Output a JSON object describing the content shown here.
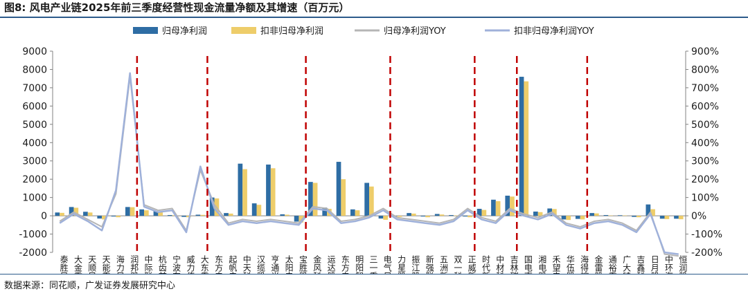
{
  "figure": {
    "title": "图8:  风电产业链2025年前三季度经营性现金流量净额及其增速（百万元）",
    "source": "数据来源：同花顺，广发证券发展研究中心"
  },
  "colors": {
    "net_profit": "#2e6da4",
    "deducted_net_profit": "#eecd6a",
    "net_profit_yoy": "#b5b5b5",
    "deducted_net_profit_yoy": "#9fb1da",
    "separator": "#c00000"
  },
  "chart_data": {
    "type": "bar",
    "categories": [
      "泰胜风能",
      "大金重工",
      "天顺风能",
      "天能重工",
      "海力风电",
      "润邦股份",
      "中际联合",
      "杭齿前进",
      "宁波东力",
      "威力传动",
      "大东重工",
      "东方电缆",
      "起帆电缆",
      "中天科技",
      "汉缆股份",
      "亨通光电",
      "太阳电缆",
      "宝胜股份",
      "金风科技",
      "运达股份",
      "东方电气",
      "明阳智能",
      "三一重能",
      "电气风电",
      "力星股份",
      "振江股份",
      "新强联",
      "五洲新春",
      "双一科技",
      "正威新材",
      "时代新材",
      "中材科技",
      "吉林碳谷",
      "国电南瑞",
      "湘电股份",
      "禾望电气",
      "华伍股份",
      "海得控制",
      "金雷股份",
      "通裕重工",
      "广大特材",
      "吉鑫科技",
      "日月股份",
      "中环海陆",
      "恒润股份"
    ],
    "series": [
      {
        "name": "归母净利润",
        "axis": "left",
        "values": [
          180,
          480,
          220,
          -150,
          -40,
          480,
          350,
          250,
          40,
          -60,
          60,
          1000,
          150,
          2850,
          680,
          2800,
          80,
          -320,
          1850,
          450,
          2950,
          350,
          1800,
          -150,
          -20,
          150,
          -40,
          100,
          40,
          -40,
          380,
          880,
          1100,
          7600,
          230,
          400,
          -200,
          -170,
          150,
          40,
          30,
          -60,
          620,
          -160,
          -160
        ]
      },
      {
        "name": "扣非归母净利润",
        "axis": "left",
        "values": [
          160,
          440,
          180,
          -200,
          -80,
          470,
          300,
          220,
          30,
          -80,
          50,
          950,
          120,
          2550,
          600,
          2600,
          60,
          -370,
          1800,
          380,
          2000,
          300,
          1600,
          -220,
          -60,
          120,
          -80,
          70,
          20,
          -80,
          320,
          800,
          1050,
          7350,
          200,
          370,
          -230,
          -200,
          130,
          20,
          20,
          -80,
          360,
          -180,
          -190
        ]
      },
      {
        "name": "归母净利润YOY",
        "axis": "right",
        "values": [
          -30,
          20,
          -20,
          -60,
          120,
          760,
          60,
          30,
          40,
          -80,
          250,
          60,
          -40,
          -20,
          -30,
          -20,
          -30,
          -40,
          50,
          40,
          -30,
          -20,
          0,
          40,
          -10,
          -20,
          -30,
          -40,
          -20,
          40,
          -10,
          -30,
          40,
          10,
          -10,
          20,
          -40,
          -60,
          -30,
          -20,
          -40,
          -80,
          20,
          -210,
          -220
        ]
      },
      {
        "name": "扣非归母净利润YOY",
        "axis": "right",
        "values": [
          -40,
          10,
          -30,
          -80,
          140,
          780,
          50,
          20,
          30,
          -90,
          270,
          40,
          -50,
          -30,
          -40,
          -30,
          -40,
          -50,
          40,
          30,
          -40,
          -30,
          -10,
          30,
          -20,
          -30,
          -40,
          -50,
          -30,
          30,
          -20,
          -40,
          30,
          0,
          -20,
          10,
          -50,
          -70,
          -40,
          -30,
          -50,
          -90,
          10,
          -200,
          -210
        ]
      }
    ],
    "ylim_left": [
      -2000,
      9000
    ],
    "yticks_left": [
      "-2000",
      "-1000",
      "0",
      "1000",
      "2000",
      "3000",
      "4000",
      "5000",
      "6000",
      "7000",
      "8000",
      "9000"
    ],
    "ylim_right": [
      -200,
      900
    ],
    "yticks_right": [
      "-200%",
      "-100%",
      "0%",
      "100%",
      "200%",
      "300%",
      "400%",
      "500%",
      "600%",
      "700%",
      "800%",
      "900%"
    ],
    "group_separators_after": [
      5,
      10,
      17,
      23,
      29,
      32,
      37
    ],
    "legend_position": "top-center"
  }
}
